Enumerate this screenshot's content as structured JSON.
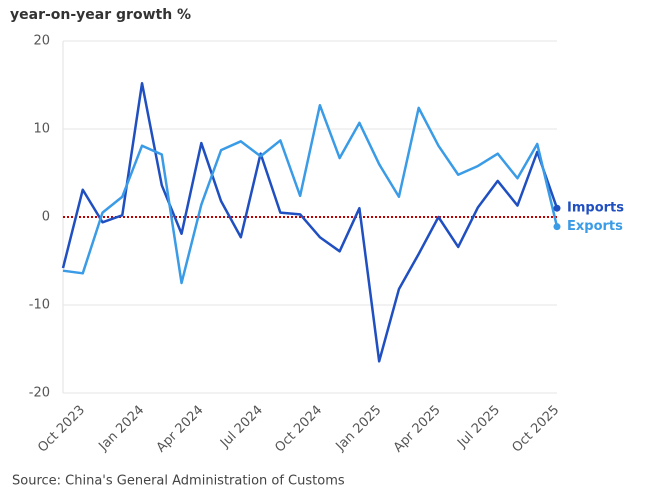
{
  "chart_data": {
    "type": "line",
    "title": "year-on-year growth %",
    "categories": [
      null,
      "Oct 2023",
      null,
      null,
      "Jan 2024",
      null,
      null,
      "Apr 2024",
      null,
      null,
      "Jul 2024",
      null,
      null,
      "Oct 2024",
      null,
      null,
      "Jan 2025",
      null,
      null,
      "Apr 2025",
      null,
      null,
      "Jul 2025",
      null,
      null,
      "Oct 2025"
    ],
    "series": [
      {
        "name": "Imports",
        "color": "#1f4fc1",
        "values": [
          -5.8,
          3.1,
          -0.6,
          0.2,
          15.2,
          3.6,
          -1.9,
          8.4,
          1.8,
          -2.3,
          7.2,
          0.5,
          0.3,
          -2.3,
          -3.9,
          1.0,
          -16.4,
          -8.2,
          -4.2,
          0,
          -3.4,
          1.1,
          4.1,
          1.3,
          7.4,
          1.0
        ]
      },
      {
        "name": "Exports",
        "color": "#3a9be6",
        "values": [
          -6.1,
          -6.4,
          0.5,
          2.3,
          8.1,
          7.1,
          -7.5,
          1.4,
          7.6,
          8.6,
          6.9,
          8.7,
          2.4,
          12.7,
          6.7,
          10.7,
          6.0,
          2.3,
          12.4,
          8.1,
          4.8,
          5.8,
          7.2,
          4.4,
          8.3,
          -1.1
        ]
      }
    ],
    "ylim": [
      -20,
      20
    ],
    "yticks": [
      -20,
      -10,
      0,
      10,
      20
    ],
    "grid": true,
    "zero_line_color": "#c00000",
    "source": "Source: China's General Administration of Customs"
  }
}
